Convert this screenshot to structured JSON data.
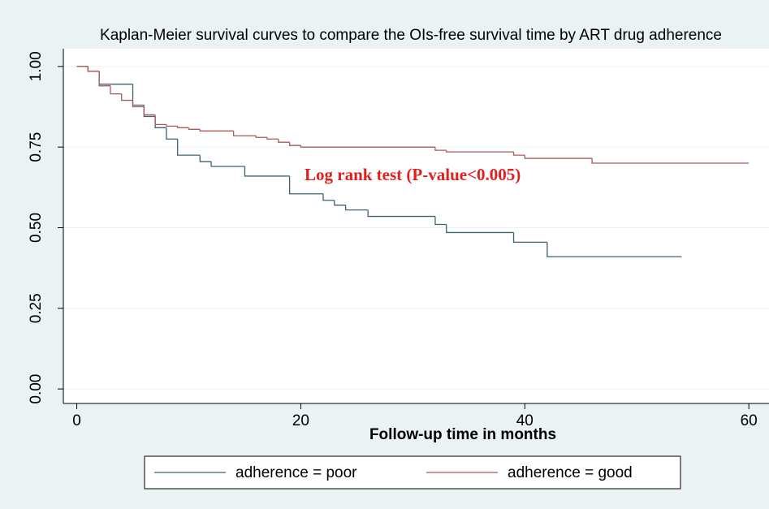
{
  "chart_data": {
    "type": "step",
    "title": "Kaplan-Meier survival curves to compare the OIs-free survival time by ART drug adherence",
    "xlabel": "Follow-up time in months",
    "annotation": "Log rank test (P-value<0.005)",
    "xlim": [
      -1.2,
      61.8
    ],
    "ylim": [
      -0.045,
      1.055
    ],
    "xticks": [
      0,
      20,
      40,
      60
    ],
    "yticks": [
      {
        "value": 0,
        "label": "0.00"
      },
      {
        "value": 0.25,
        "label": "0.25"
      },
      {
        "value": 0.5,
        "label": "0.50"
      },
      {
        "value": 0.75,
        "label": "0.75"
      },
      {
        "value": 1,
        "label": "1.00"
      }
    ],
    "grid": true,
    "legend": "bottom",
    "series": [
      {
        "name": "adherence = poor",
        "color": "#3b6470",
        "x": [
          0,
          1,
          2,
          5,
          6,
          7,
          8,
          9,
          11,
          12,
          15,
          19,
          22,
          23,
          24,
          26,
          32,
          33,
          39,
          42,
          54
        ],
        "values": [
          1,
          0.985,
          0.945,
          0.88,
          0.845,
          0.81,
          0.775,
          0.725,
          0.705,
          0.69,
          0.66,
          0.605,
          0.585,
          0.57,
          0.555,
          0.535,
          0.51,
          0.485,
          0.455,
          0.41,
          0.41
        ]
      },
      {
        "name": "adherence = good",
        "color": "#a85a5a",
        "x": [
          0,
          1,
          2,
          3,
          4,
          5,
          6,
          7,
          8,
          9,
          10,
          11,
          14,
          16,
          17,
          18,
          19,
          20,
          32,
          33,
          39,
          40,
          46,
          60
        ],
        "values": [
          1,
          0.985,
          0.94,
          0.915,
          0.895,
          0.875,
          0.85,
          0.82,
          0.815,
          0.81,
          0.805,
          0.8,
          0.785,
          0.78,
          0.775,
          0.765,
          0.755,
          0.75,
          0.74,
          0.735,
          0.725,
          0.715,
          0.7,
          0.7
        ]
      }
    ]
  }
}
